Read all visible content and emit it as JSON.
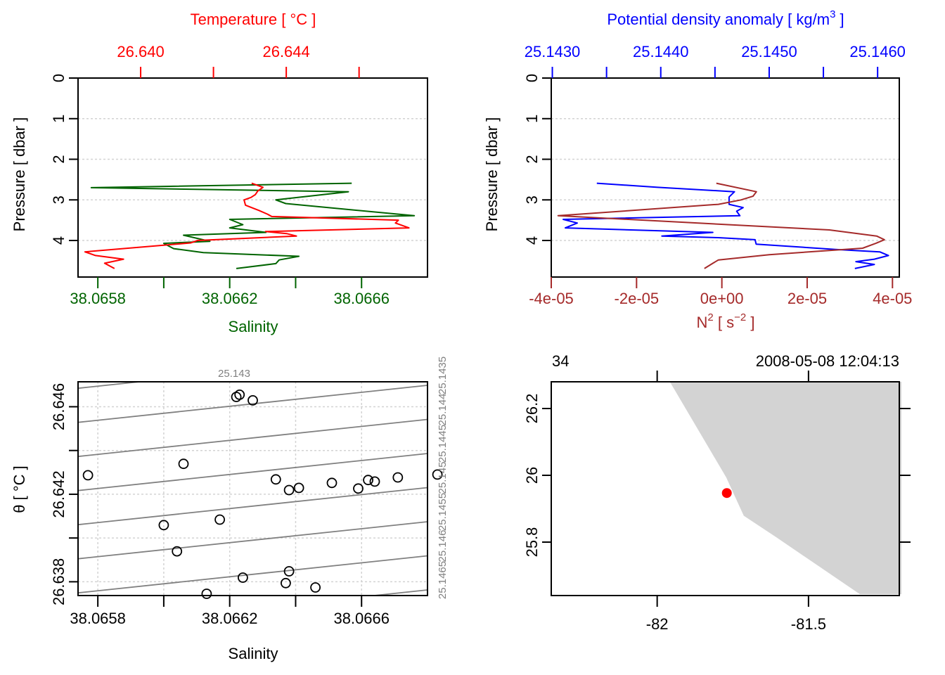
{
  "chart_data": [
    {
      "type": "line",
      "panel": "top-left",
      "title": "Temperature [ °C ]",
      "xlabel": "Salinity",
      "ylabel": "Pressure [ dbar ]",
      "y_ticks": [
        "0",
        "1",
        "2",
        "3",
        "4"
      ],
      "ylim": [
        0,
        4.9
      ],
      "y_reversed": true,
      "grid": true,
      "bottom_axis": {
        "label": "Salinity",
        "color": "#006400",
        "range": [
          38.06574,
          38.0668
        ],
        "ticks": [
          38.0658,
          38.066,
          38.0662,
          38.0664,
          38.0666
        ],
        "tick_labels": [
          "38.0658",
          "",
          "38.0662",
          "",
          "38.0666"
        ]
      },
      "top_axis": {
        "label": "Temperature [ °C ]",
        "color": "#ff0000",
        "range": [
          26.63828,
          26.64788
        ],
        "ticks": [
          26.64,
          26.642,
          26.644,
          26.646
        ],
        "tick_labels": [
          "26.640",
          "",
          "26.644",
          ""
        ]
      },
      "series": [
        {
          "name": "Salinity",
          "color": "#006400",
          "axis": "bottom",
          "pressure": [
            2.59,
            2.7,
            2.8,
            3.0,
            3.09,
            3.39,
            3.48,
            3.61,
            3.69,
            3.8,
            3.87,
            4.02,
            4.07,
            4.2,
            4.3,
            4.39,
            4.48,
            4.57,
            4.69
          ],
          "values": [
            38.06657,
            38.06578,
            38.06656,
            38.06634,
            38.06637,
            38.06676,
            38.0662,
            38.06624,
            38.0662,
            38.06631,
            38.06606,
            38.06614,
            38.066,
            38.06603,
            38.06612,
            38.06641,
            38.06635,
            38.06634,
            38.06622
          ]
        },
        {
          "name": "Temperature",
          "color": "#ff0000",
          "axis": "top",
          "pressure": [
            2.59,
            2.69,
            2.78,
            2.87,
            2.94,
            3.0,
            3.13,
            3.26,
            3.35,
            3.41,
            3.5,
            3.57,
            3.69,
            3.78,
            3.83,
            3.89,
            4.0,
            4.02,
            4.06,
            4.28,
            4.37,
            4.46,
            4.56,
            4.69
          ],
          "values": [
            26.64305,
            26.64336,
            26.64322,
            26.64315,
            26.64303,
            26.64284,
            26.64288,
            26.64325,
            26.64348,
            26.6436,
            26.64708,
            26.647,
            26.64737,
            26.64343,
            26.64401,
            26.64428,
            26.64156,
            26.6415,
            26.64137,
            26.63847,
            26.63876,
            26.63953,
            26.63901,
            26.63928
          ]
        }
      ]
    },
    {
      "type": "line",
      "panel": "top-right",
      "title": "Potential density anomaly [ kg/m3 ]",
      "xlabel": "N2 [ s-2 ]",
      "ylabel": "Pressure [ dbar ]",
      "y_ticks": [
        "0",
        "1",
        "2",
        "3",
        "4"
      ],
      "ylim": [
        0,
        4.9
      ],
      "y_reversed": true,
      "grid": true,
      "top_axis": {
        "label": "Potential density anomaly [ kg/m",
        "label_sup": "3",
        "label_end": " ]",
        "color": "#0000ff",
        "range": [
          25.14299,
          25.1462
        ],
        "ticks": [
          25.143,
          25.1435,
          25.144,
          25.1445,
          25.145,
          25.1455,
          25.146
        ],
        "tick_labels": [
          "25.1430",
          "",
          "25.1440",
          "",
          "25.1450",
          "",
          "25.1460"
        ]
      },
      "bottom_axis": {
        "label": "N",
        "label_sup": "2",
        "label_mid": " [ s",
        "label_sup2": "−2",
        "label_end": " ]",
        "color": "#a52a2a",
        "range": [
          -4e-05,
          4.16e-05
        ],
        "ticks": [
          -4e-05,
          -2e-05,
          0,
          2e-05,
          4e-05
        ],
        "tick_labels": [
          "-4e-05",
          "-2e-05",
          "0e+00",
          "2e-05",
          "4e-05"
        ]
      },
      "series": [
        {
          "name": "Potential density anomaly",
          "color": "#0000ff",
          "axis": "top",
          "pressure": [
            2.59,
            2.69,
            2.8,
            2.93,
            3.11,
            3.19,
            3.28,
            3.39,
            3.48,
            3.57,
            3.69,
            3.8,
            3.89,
            3.93,
            3.98,
            4.09,
            4.22,
            4.28,
            4.37,
            4.46,
            4.52,
            4.59,
            4.69
          ],
          "values": [
            25.14341,
            25.14397,
            25.14468,
            25.14463,
            25.14463,
            25.14476,
            25.1447,
            25.14473,
            25.1431,
            25.14323,
            25.14312,
            25.14448,
            25.14401,
            25.14453,
            25.14487,
            25.14488,
            25.14561,
            25.14602,
            25.1461,
            25.14597,
            25.1458,
            25.14597,
            25.14579
          ]
        },
        {
          "name": "N2",
          "color": "#a52a2a",
          "axis": "bottom",
          "pressure": [
            2.59,
            2.8,
            2.91,
            3.0,
            3.11,
            3.39,
            3.74,
            3.89,
            3.98,
            4.07,
            4.19,
            4.35,
            4.48,
            4.56,
            4.69
          ],
          "values": [
            -1.3e-06,
            8.1e-06,
            7.3e-06,
            4.5e-06,
            -8.2e-07,
            -3.84e-05,
            2.52e-05,
            3.63e-05,
            3.81e-05,
            3.61e-05,
            3.3e-05,
            1.11e-05,
            -8.2e-07,
            -2.1e-06,
            -4.1e-06
          ]
        }
      ]
    },
    {
      "type": "scatter",
      "panel": "bottom-left",
      "xlabel": "Salinity",
      "ylabel": "θ [ °C ]",
      "xlim": [
        38.06574,
        38.0668
      ],
      "ylim": [
        26.63737,
        26.64714
      ],
      "x_ticks": [
        38.0658,
        38.066,
        38.0662,
        38.0664,
        38.0666
      ],
      "x_tick_labels": [
        "38.0658",
        "",
        "38.0662",
        "",
        "38.0666"
      ],
      "y_ticks": [
        26.638,
        26.64,
        26.642,
        26.644,
        26.646
      ],
      "y_tick_labels": [
        "26.638",
        "",
        "26.642",
        "",
        "26.646"
      ],
      "grid": true,
      "isopycnal_top_label": "25.143",
      "isopycnal_right_labels": [
        "25.1435",
        "25.144",
        "25.1445",
        "25.145",
        "25.1455",
        "25.146",
        "25.1465"
      ],
      "points": {
        "x": [
          38.06577,
          38.06606,
          38.06622,
          38.06623,
          38.06627,
          38.06634,
          38.06638,
          38.06641,
          38.06651,
          38.06659,
          38.06662,
          38.06664,
          38.06671,
          38.06683,
          38.066,
          38.06617,
          38.06604,
          38.06624,
          38.06638,
          38.06637,
          38.06646,
          38.06613
        ],
        "y": [
          26.64287,
          26.64339,
          26.64645,
          26.64655,
          26.64629,
          26.64268,
          26.64219,
          26.64229,
          26.64252,
          26.64226,
          26.64265,
          26.64258,
          26.64277,
          26.6429,
          26.64059,
          26.64084,
          26.63939,
          26.63819,
          26.63848,
          26.63794,
          26.63774,
          26.63745
        ]
      }
    },
    {
      "type": "scatter",
      "panel": "bottom-right",
      "top_left_label": "34",
      "top_right_label": "2008-05-08 12:04:13",
      "xlim": [
        -82.35,
        -81.2
      ],
      "ylim": [
        25.64,
        26.28
      ],
      "x_ticks": [
        -82,
        -81.5
      ],
      "x_tick_labels": [
        "-82",
        "-81.5"
      ],
      "y_ticks": [
        25.8,
        26.0,
        26.2
      ],
      "y_tick_labels": [
        "25.8",
        "26",
        "26.2"
      ],
      "coastline": {
        "fill": "#d3d3d3",
        "lon": [
          -81.958,
          -81.772,
          -81.714,
          -81.609,
          -81.33,
          -81.193,
          -81.193
        ],
        "lat": [
          26.28,
          25.994,
          25.879,
          25.816,
          25.644,
          25.644,
          26.28
        ]
      },
      "station": {
        "lon": -81.77,
        "lat": 25.947,
        "color": "#ff0000"
      }
    }
  ]
}
